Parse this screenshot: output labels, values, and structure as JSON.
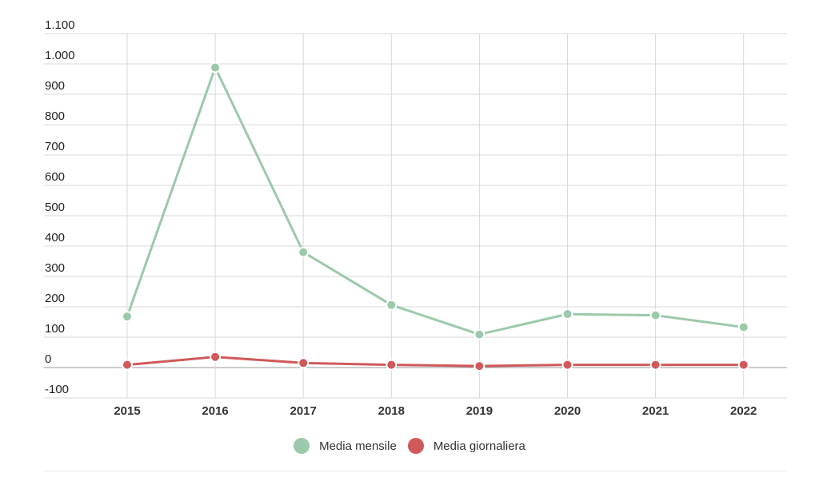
{
  "chart_data": {
    "type": "line",
    "categories": [
      "2015",
      "2016",
      "2017",
      "2018",
      "2019",
      "2020",
      "2021",
      "2022"
    ],
    "series": [
      {
        "name": "Media mensile",
        "color": "#9cc9aa",
        "values": [
          168,
          988,
          380,
          206,
          109,
          176,
          172,
          133
        ]
      },
      {
        "name": "Media giornaliera",
        "color": "#d0595a",
        "values": [
          9,
          35,
          15,
          9,
          5,
          9,
          9,
          9
        ]
      }
    ],
    "ylim": [
      -100,
      1100
    ],
    "yticks": [
      {
        "value": 1100,
        "label": "1.100"
      },
      {
        "value": 1000,
        "label": "1.000"
      },
      {
        "value": 900,
        "label": "900"
      },
      {
        "value": 800,
        "label": "800"
      },
      {
        "value": 700,
        "label": "700"
      },
      {
        "value": 600,
        "label": "600"
      },
      {
        "value": 500,
        "label": "500"
      },
      {
        "value": 400,
        "label": "400"
      },
      {
        "value": 300,
        "label": "300"
      },
      {
        "value": 200,
        "label": "200"
      },
      {
        "value": 100,
        "label": "100"
      },
      {
        "value": 0,
        "label": "0"
      },
      {
        "value": -100,
        "label": "-100"
      }
    ],
    "grid": true,
    "legend_position": "bottom-center",
    "gridline_color": "#d9d9d9",
    "zero_line_color": "#999999"
  }
}
